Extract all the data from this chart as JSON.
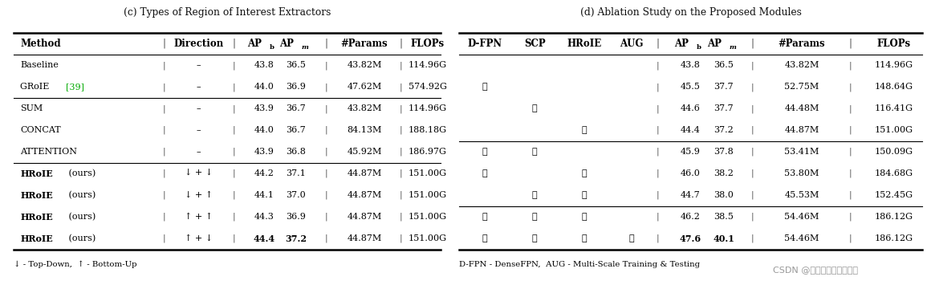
{
  "title_c": "(c) Types of Region of Interest Extractors",
  "title_d": "(d) Ablation Study on the Proposed Modules",
  "bg_color": "#ffffff",
  "table_c": {
    "groups": [
      {
        "rows": [
          {
            "method": "Baseline",
            "method_bold": false,
            "groi": false,
            "direction": "–",
            "apb": "43.8",
            "apm": "36.5",
            "params": "43.82M",
            "flops": "114.96G",
            "bold_apb": false,
            "bold_apm": false
          },
          {
            "method": "GRoIE",
            "method_bold": false,
            "groi": true,
            "direction": "–",
            "apb": "44.0",
            "apm": "36.9",
            "params": "47.62M",
            "flops": "574.92G",
            "bold_apb": false,
            "bold_apm": false
          }
        ]
      },
      {
        "rows": [
          {
            "method": "SUM",
            "method_bold": false,
            "groi": false,
            "direction": "–",
            "apb": "43.9",
            "apm": "36.7",
            "params": "43.82M",
            "flops": "114.96G",
            "bold_apb": false,
            "bold_apm": false
          },
          {
            "method": "CONCAT",
            "method_bold": false,
            "groi": false,
            "direction": "–",
            "apb": "44.0",
            "apm": "36.7",
            "params": "84.13M",
            "flops": "188.18G",
            "bold_apb": false,
            "bold_apm": false
          },
          {
            "method": "ATTENTION",
            "method_bold": false,
            "groi": false,
            "direction": "–",
            "apb": "43.9",
            "apm": "36.8",
            "params": "45.92M",
            "flops": "186.97G",
            "bold_apb": false,
            "bold_apm": false
          }
        ]
      },
      {
        "rows": [
          {
            "method": "HRoIE",
            "method_bold": true,
            "groi": false,
            "direction": "↓ + ↓",
            "apb": "44.2",
            "apm": "37.1",
            "params": "44.87M",
            "flops": "151.00G",
            "bold_apb": false,
            "bold_apm": false
          },
          {
            "method": "HRoIE",
            "method_bold": true,
            "groi": false,
            "direction": "↓ + ↑",
            "apb": "44.1",
            "apm": "37.0",
            "params": "44.87M",
            "flops": "151.00G",
            "bold_apb": false,
            "bold_apm": false
          },
          {
            "method": "HRoIE",
            "method_bold": true,
            "groi": false,
            "direction": "↑ + ↑",
            "apb": "44.3",
            "apm": "36.9",
            "params": "44.87M",
            "flops": "151.00G",
            "bold_apb": false,
            "bold_apm": false
          },
          {
            "method": "HRoIE",
            "method_bold": true,
            "groi": false,
            "direction": "↑ + ↓",
            "apb": "44.4",
            "apm": "37.2",
            "params": "44.87M",
            "flops": "151.00G",
            "bold_apb": true,
            "bold_apm": true
          }
        ]
      }
    ],
    "footnote": "↓ - Top-Down,  ↑ - Bottom-Up"
  },
  "table_d": {
    "groups": [
      {
        "rows": [
          {
            "dfpn": "",
            "scp": "",
            "hroie": "",
            "aug": "",
            "apb": "43.8",
            "apm": "36.5",
            "params": "43.82M",
            "flops": "114.96G",
            "bold_apb": false,
            "bold_apm": false
          },
          {
            "dfpn": "✓",
            "scp": "",
            "hroie": "",
            "aug": "",
            "apb": "45.5",
            "apm": "37.7",
            "params": "52.75M",
            "flops": "148.64G",
            "bold_apb": false,
            "bold_apm": false
          },
          {
            "dfpn": "",
            "scp": "✓",
            "hroie": "",
            "aug": "",
            "apb": "44.6",
            "apm": "37.7",
            "params": "44.48M",
            "flops": "116.41G",
            "bold_apb": false,
            "bold_apm": false
          },
          {
            "dfpn": "",
            "scp": "",
            "hroie": "✓",
            "aug": "",
            "apb": "44.4",
            "apm": "37.2",
            "params": "44.87M",
            "flops": "151.00G",
            "bold_apb": false,
            "bold_apm": false
          }
        ]
      },
      {
        "rows": [
          {
            "dfpn": "✓",
            "scp": "✓",
            "hroie": "",
            "aug": "",
            "apb": "45.9",
            "apm": "37.8",
            "params": "53.41M",
            "flops": "150.09G",
            "bold_apb": false,
            "bold_apm": false
          },
          {
            "dfpn": "✓",
            "scp": "",
            "hroie": "✓",
            "aug": "",
            "apb": "46.0",
            "apm": "38.2",
            "params": "53.80M",
            "flops": "184.68G",
            "bold_apb": false,
            "bold_apm": false
          },
          {
            "dfpn": "",
            "scp": "✓",
            "hroie": "✓",
            "aug": "",
            "apb": "44.7",
            "apm": "38.0",
            "params": "45.53M",
            "flops": "152.45G",
            "bold_apb": false,
            "bold_apm": false
          }
        ]
      },
      {
        "rows": [
          {
            "dfpn": "✓",
            "scp": "✓",
            "hroie": "✓",
            "aug": "",
            "apb": "46.2",
            "apm": "38.5",
            "params": "54.46M",
            "flops": "186.12G",
            "bold_apb": false,
            "bold_apm": false
          },
          {
            "dfpn": "✓",
            "scp": "✓",
            "hroie": "✓",
            "aug": "✓",
            "apb": "47.6",
            "apm": "40.1",
            "params": "54.46M",
            "flops": "186.12G",
            "bold_apb": true,
            "bold_apm": true
          }
        ]
      }
    ],
    "footnote": "D-FPN - DenseFPN,  AUG - Multi-Scale Training & Testing"
  },
  "watermark": "CSDN @人工智能算法研究院"
}
